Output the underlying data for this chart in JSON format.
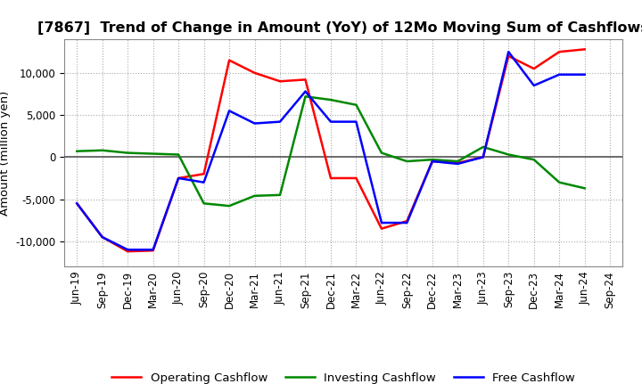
{
  "title": "[7867]  Trend of Change in Amount (YoY) of 12Mo Moving Sum of Cashflows",
  "ylabel": "Amount (million yen)",
  "x_labels": [
    "Jun-19",
    "Sep-19",
    "Dec-19",
    "Mar-20",
    "Jun-20",
    "Sep-20",
    "Dec-20",
    "Mar-21",
    "Jun-21",
    "Sep-21",
    "Dec-21",
    "Mar-22",
    "Jun-22",
    "Sep-22",
    "Dec-22",
    "Mar-23",
    "Jun-23",
    "Sep-23",
    "Dec-23",
    "Mar-24",
    "Jun-24",
    "Sep-24"
  ],
  "operating": [
    -5500,
    -9500,
    -11200,
    -11100,
    -2500,
    -2000,
    11500,
    10000,
    9000,
    9200,
    -2500,
    -2500,
    -8500,
    -7600,
    -500,
    -700,
    0,
    12000,
    10500,
    12500,
    12800,
    null
  ],
  "investing": [
    700,
    800,
    500,
    400,
    300,
    -5500,
    -5800,
    -4600,
    -4500,
    7200,
    6800,
    6200,
    500,
    -500,
    -300,
    -500,
    1200,
    300,
    -300,
    -3000,
    -3700,
    null
  ],
  "free": [
    -5500,
    -9500,
    -11000,
    -11000,
    -2500,
    -3000,
    5500,
    4000,
    4200,
    7800,
    4200,
    4200,
    -7800,
    -7800,
    -500,
    -800,
    0,
    12500,
    8500,
    9800,
    9800,
    null
  ],
  "operating_color": "#ff0000",
  "investing_color": "#008800",
  "free_color": "#0000ff",
  "ylim": [
    -13000,
    14000
  ],
  "yticks": [
    -10000,
    -5000,
    0,
    5000,
    10000
  ],
  "background_color": "#ffffff",
  "plot_bg_color": "#ffffff",
  "grid_color": "#aaaaaa",
  "zero_line_color": "#555555",
  "title_fontsize": 11.5,
  "label_fontsize": 9.5,
  "tick_fontsize": 8.5,
  "legend_fontsize": 9.5
}
